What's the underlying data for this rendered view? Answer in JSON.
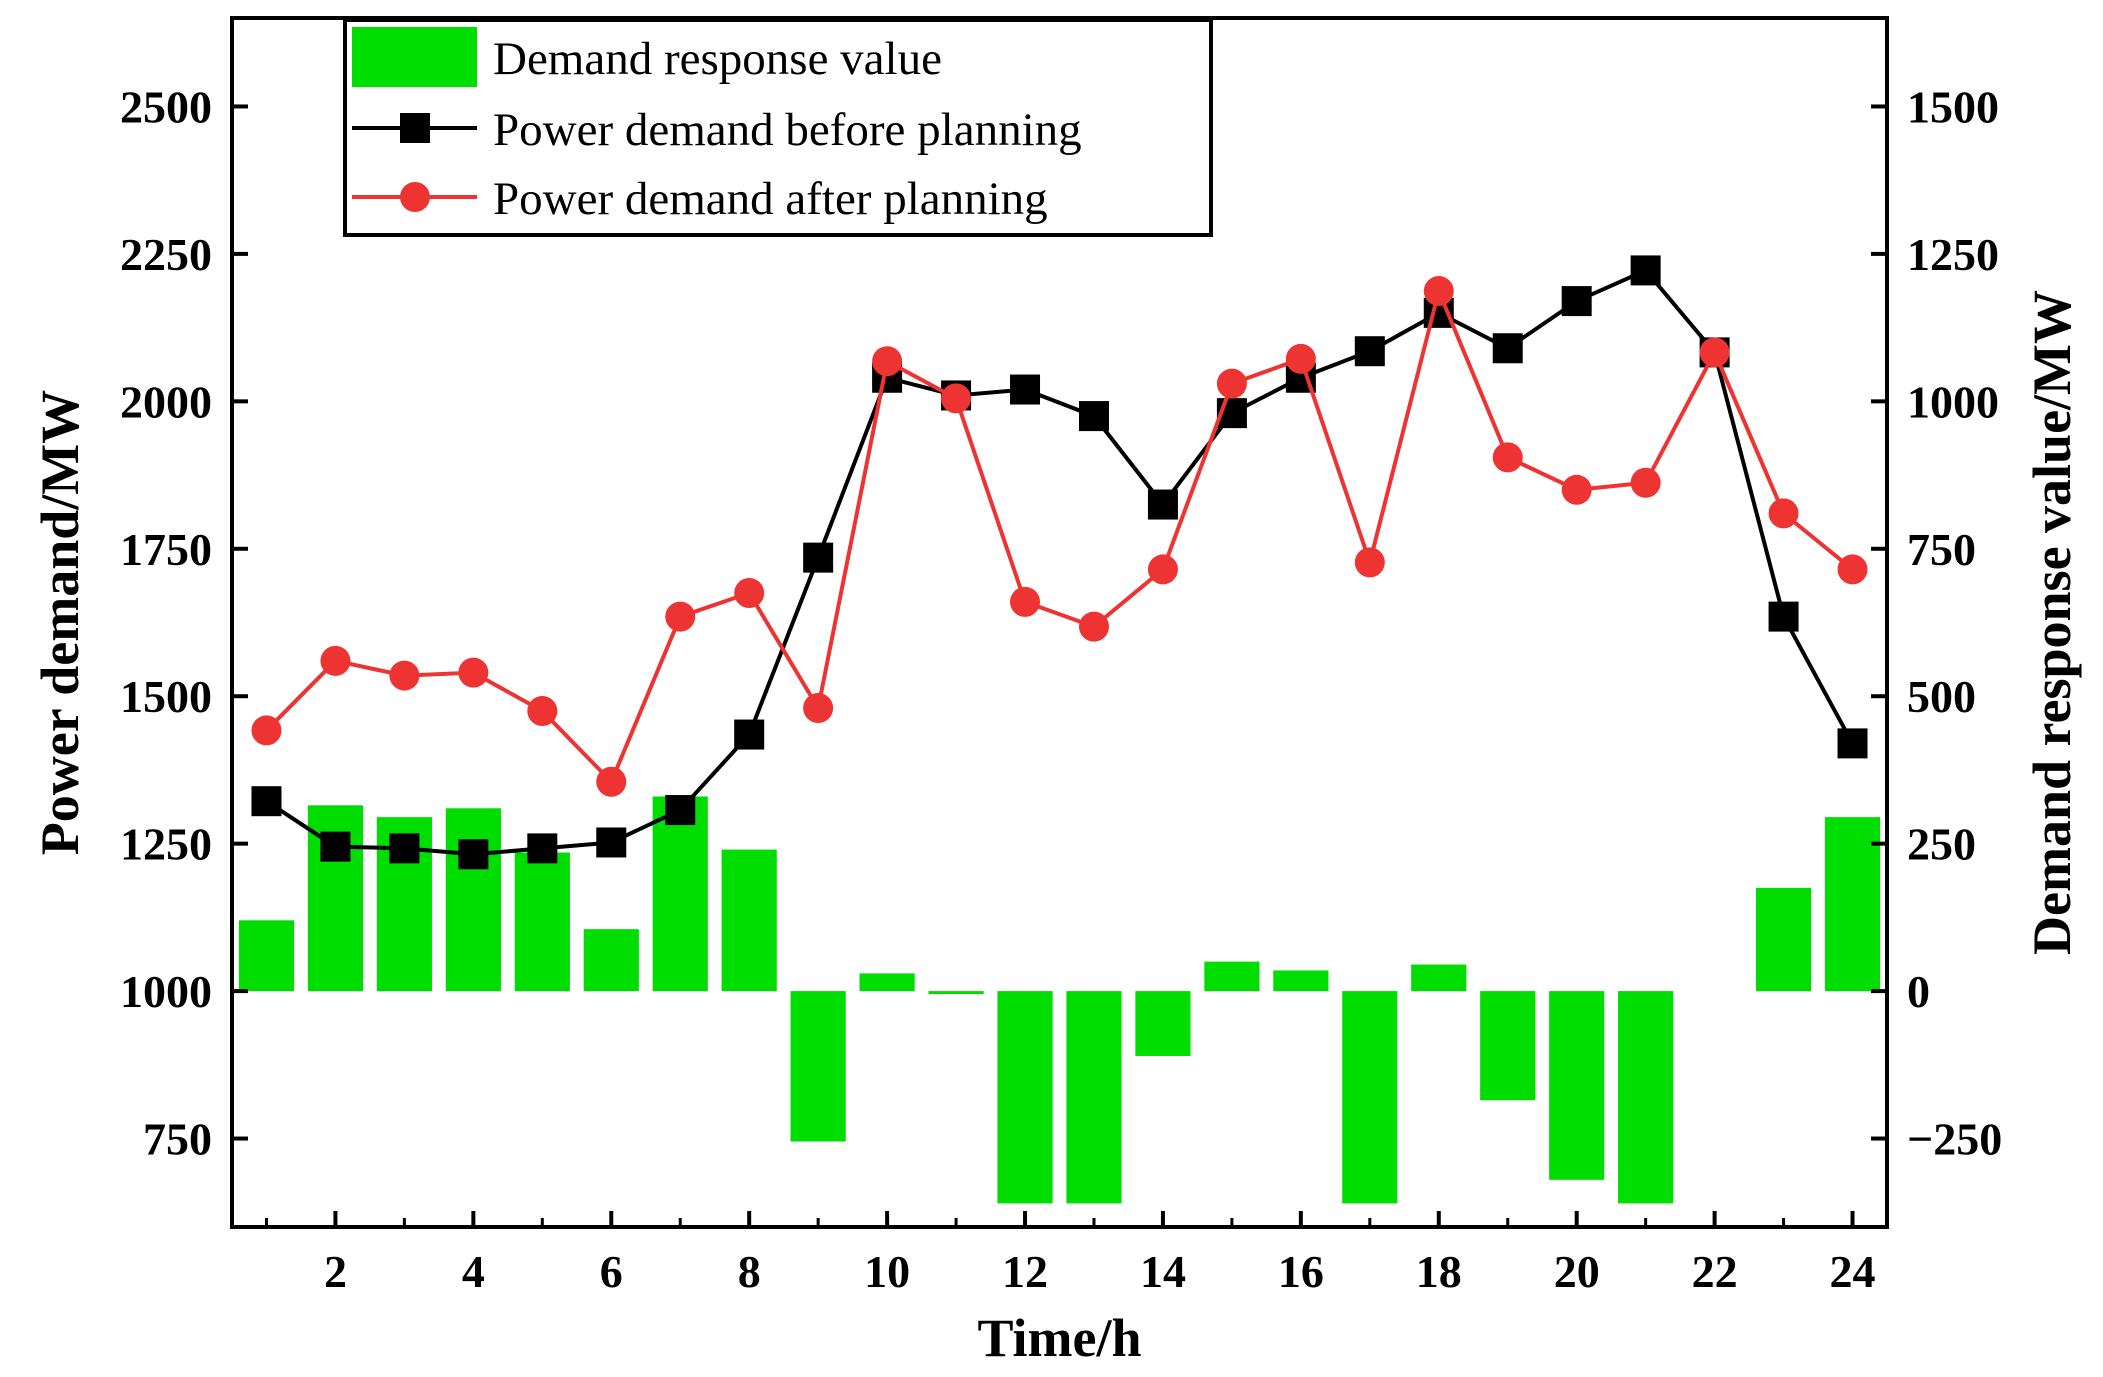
{
  "chart_data": {
    "type": "bar+line",
    "title": "",
    "xlabel": "Time/h",
    "ylabel_left": "Power demand/MW",
    "ylabel_right": "Demand response value/MW",
    "x": [
      1,
      2,
      3,
      4,
      5,
      6,
      7,
      8,
      9,
      10,
      11,
      12,
      13,
      14,
      15,
      16,
      17,
      18,
      19,
      20,
      21,
      22,
      23,
      24
    ],
    "x_ticks": [
      2,
      4,
      6,
      8,
      10,
      12,
      14,
      16,
      18,
      20,
      22,
      24
    ],
    "xlim": [
      0.5,
      24.5
    ],
    "ylim_left": [
      600,
      2650
    ],
    "ylim_right": [
      -400,
      1650
    ],
    "y_ticks_left": [
      750,
      1000,
      1250,
      1500,
      1750,
      2000,
      2250,
      2500
    ],
    "y_ticks_right": [
      -250,
      0,
      250,
      500,
      750,
      1000,
      1250,
      1500
    ],
    "y_tick_labels_right": [
      "−250",
      "0",
      "250",
      "500",
      "750",
      "1000",
      "1250",
      "1500"
    ],
    "series": [
      {
        "name": "Demand response value",
        "type": "bar",
        "axis": "right",
        "color": "#00dd00",
        "values": [
          120,
          315,
          295,
          310,
          235,
          105,
          330,
          240,
          -255,
          30,
          -5,
          -360,
          -360,
          -110,
          50,
          35,
          -360,
          45,
          -185,
          -320,
          -360,
          0,
          175,
          295
        ]
      },
      {
        "name": "Power demand before planning",
        "type": "line",
        "axis": "left",
        "color": "#000000",
        "marker": "square",
        "values": [
          1322,
          1245,
          1242,
          1232,
          1242,
          1252,
          1307,
          1435,
          1735,
          2040,
          2010,
          2020,
          1975,
          1825,
          1980,
          2040,
          2085,
          2150,
          2090,
          2170,
          2222,
          2083,
          1635,
          1420
        ]
      },
      {
        "name": "Power demand after planning",
        "type": "line",
        "axis": "left",
        "color": "#ee3333",
        "marker": "circle",
        "values": [
          1442,
          1560,
          1535,
          1540,
          1475,
          1355,
          1635,
          1675,
          1480,
          2068,
          2005,
          1660,
          1618,
          1715,
          2030,
          2072,
          1727,
          2187,
          1905,
          1850,
          1862,
          2083,
          1810,
          1715
        ]
      }
    ],
    "legend_position": "top-left"
  }
}
